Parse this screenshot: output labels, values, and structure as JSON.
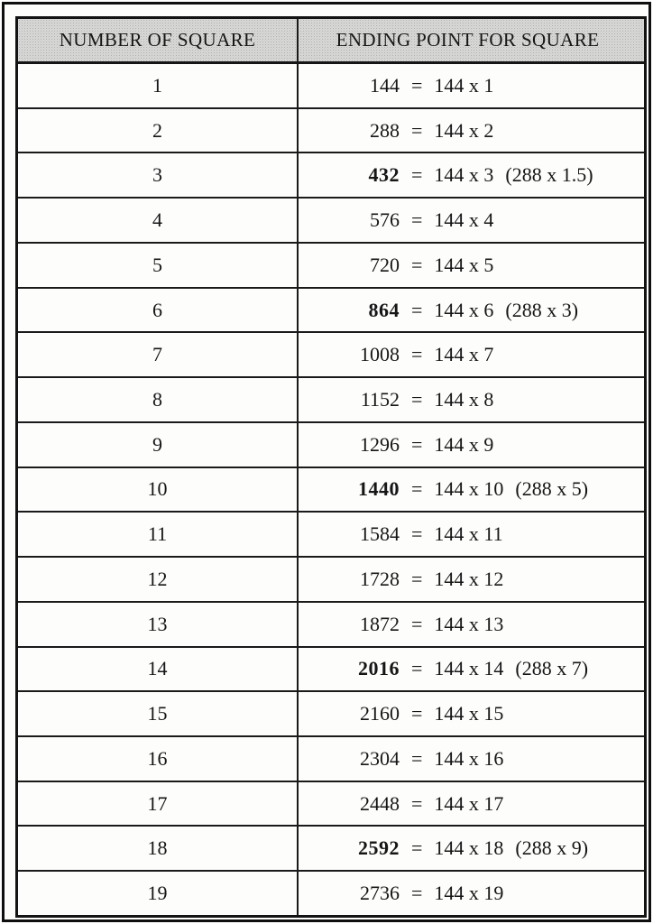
{
  "colors": {
    "header_background": "#d8d8d6",
    "border": "#161616",
    "text": "#161616",
    "page_background": "#fdfdfc"
  },
  "table": {
    "columns": [
      {
        "label": "NUMBER OF SQUARE"
      },
      {
        "label": "ENDING POINT FOR SQUARE"
      }
    ],
    "rows": [
      {
        "number": "1",
        "value": "144",
        "equals": "=",
        "multiplication": "144 x 1",
        "note": "",
        "bold": false
      },
      {
        "number": "2",
        "value": "288",
        "equals": "=",
        "multiplication": "144 x 2",
        "note": "",
        "bold": false
      },
      {
        "number": "3",
        "value": "432",
        "equals": "=",
        "multiplication": "144 x 3",
        "note": "(288 x 1.5)",
        "bold": true
      },
      {
        "number": "4",
        "value": "576",
        "equals": "=",
        "multiplication": "144 x 4",
        "note": "",
        "bold": false
      },
      {
        "number": "5",
        "value": "720",
        "equals": "=",
        "multiplication": "144 x 5",
        "note": "",
        "bold": false
      },
      {
        "number": "6",
        "value": "864",
        "equals": "=",
        "multiplication": "144 x 6",
        "note": "(288 x 3)",
        "bold": true
      },
      {
        "number": "7",
        "value": "1008",
        "equals": "=",
        "multiplication": "144 x 7",
        "note": "",
        "bold": false
      },
      {
        "number": "8",
        "value": "1152",
        "equals": "=",
        "multiplication": "144 x 8",
        "note": "",
        "bold": false
      },
      {
        "number": "9",
        "value": "1296",
        "equals": "=",
        "multiplication": "144 x 9",
        "note": "",
        "bold": false
      },
      {
        "number": "10",
        "value": "1440",
        "equals": "=",
        "multiplication": "144 x 10",
        "note": "(288 x 5)",
        "bold": true
      },
      {
        "number": "11",
        "value": "1584",
        "equals": "=",
        "multiplication": "144 x 11",
        "note": "",
        "bold": false
      },
      {
        "number": "12",
        "value": "1728",
        "equals": "=",
        "multiplication": "144 x 12",
        "note": "",
        "bold": false
      },
      {
        "number": "13",
        "value": "1872",
        "equals": "=",
        "multiplication": "144 x 13",
        "note": "",
        "bold": false
      },
      {
        "number": "14",
        "value": "2016",
        "equals": "=",
        "multiplication": "144 x 14",
        "note": "(288 x 7)",
        "bold": true
      },
      {
        "number": "15",
        "value": "2160",
        "equals": "=",
        "multiplication": "144 x 15",
        "note": "",
        "bold": false
      },
      {
        "number": "16",
        "value": "2304",
        "equals": "=",
        "multiplication": "144 x 16",
        "note": "",
        "bold": false
      },
      {
        "number": "17",
        "value": "2448",
        "equals": "=",
        "multiplication": "144 x 17",
        "note": "",
        "bold": false
      },
      {
        "number": "18",
        "value": "2592",
        "equals": "=",
        "multiplication": "144 x 18",
        "note": "(288 x 9)",
        "bold": true
      },
      {
        "number": "19",
        "value": "2736",
        "equals": "=",
        "multiplication": "144 x 19",
        "note": "",
        "bold": false
      }
    ]
  }
}
